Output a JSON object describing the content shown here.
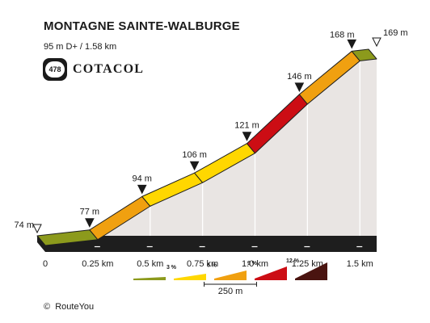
{
  "header": {
    "title": "MONTAGNE SAINTE-WALBURGE",
    "subtitle": "95 m D+ / 1.58 km",
    "badge_number": "478",
    "brand": "COTACOL"
  },
  "footer": {
    "copyright_symbol": "©",
    "copyright_text": "RouteYou"
  },
  "colors": {
    "grade_0_3": "#8c9a1c",
    "grade_3_6": "#ffd700",
    "grade_6_9": "#f0a010",
    "grade_9_12": "#cc0d14",
    "grade_12_plus": "#4a1410",
    "wall": "#e9e5e3",
    "base": "#1e1e1e",
    "grid": "#ffffff"
  },
  "chart_data": {
    "type": "area",
    "title": "MONTAGNE SAINTE-WALBURGE",
    "xlabel": "",
    "ylabel": "",
    "x_unit": "km",
    "xlim": [
      0,
      1.58
    ],
    "ylim": [
      74,
      169
    ],
    "x_ticks": [
      {
        "value": 0,
        "label": "0"
      },
      {
        "value": 0.25,
        "label": "0.25 km"
      },
      {
        "value": 0.5,
        "label": "0.5 km"
      },
      {
        "value": 0.75,
        "label": "0.75 km"
      },
      {
        "value": 1.0,
        "label": "1.0 km"
      },
      {
        "value": 1.25,
        "label": "1.25 km"
      },
      {
        "value": 1.5,
        "label": "1.5 km"
      }
    ],
    "points": [
      {
        "x": 0,
        "elevation": 74,
        "label": "74 m",
        "marker": "start"
      },
      {
        "x": 0.25,
        "elevation": 77,
        "label": "77 m",
        "marker": "point"
      },
      {
        "x": 0.5,
        "elevation": 94,
        "label": "94 m",
        "marker": "point"
      },
      {
        "x": 0.75,
        "elevation": 106,
        "label": "106 m",
        "marker": "point"
      },
      {
        "x": 1.0,
        "elevation": 121,
        "label": "121 m",
        "marker": "point"
      },
      {
        "x": 1.25,
        "elevation": 146,
        "label": "146 m",
        "marker": "point"
      },
      {
        "x": 1.5,
        "elevation": 168,
        "label": "168 m",
        "marker": "point"
      },
      {
        "x": 1.58,
        "elevation": 169,
        "label": "169 m",
        "marker": "end"
      }
    ],
    "segments": [
      {
        "from": 0,
        "to": 0.25,
        "grade_class": "grade_0_3"
      },
      {
        "from": 0.25,
        "to": 0.5,
        "grade_class": "grade_6_9"
      },
      {
        "from": 0.5,
        "to": 0.75,
        "grade_class": "grade_3_6"
      },
      {
        "from": 0.75,
        "to": 1.0,
        "grade_class": "grade_3_6"
      },
      {
        "from": 1.0,
        "to": 1.25,
        "grade_class": "grade_9_12"
      },
      {
        "from": 1.25,
        "to": 1.5,
        "grade_class": "grade_6_9"
      },
      {
        "from": 1.5,
        "to": 1.58,
        "grade_class": "grade_0_3"
      }
    ],
    "legend": {
      "placement": "bottom-center",
      "items": [
        {
          "label": "",
          "color_key": "grade_0_3"
        },
        {
          "label": "3 %",
          "color_key": "grade_3_6"
        },
        {
          "label": "6 %",
          "color_key": "grade_6_9"
        },
        {
          "label": "9 %",
          "color_key": "grade_9_12"
        },
        {
          "label": "12 %",
          "color_key": "grade_12_plus"
        }
      ],
      "scale_label": "250 m"
    }
  }
}
